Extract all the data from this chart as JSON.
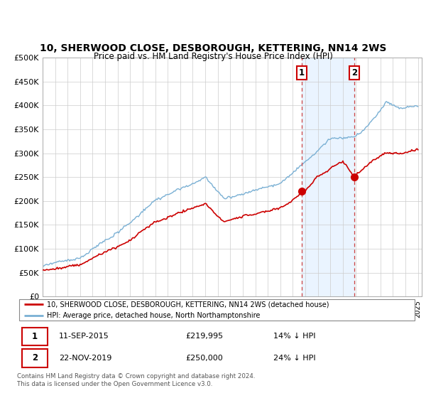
{
  "title": "10, SHERWOOD CLOSE, DESBOROUGH, KETTERING, NN14 2WS",
  "subtitle": "Price paid vs. HM Land Registry's House Price Index (HPI)",
  "ylabel_ticks": [
    "£0",
    "£50K",
    "£100K",
    "£150K",
    "£200K",
    "£250K",
    "£300K",
    "£350K",
    "£400K",
    "£450K",
    "£500K"
  ],
  "ytick_values": [
    0,
    50000,
    100000,
    150000,
    200000,
    250000,
    300000,
    350000,
    400000,
    450000,
    500000
  ],
  "ylim": [
    0,
    500000
  ],
  "transaction1_x": 2015.71,
  "transaction1_price": 219995,
  "transaction1_date": "11-SEP-2015",
  "transaction1_pct": "14% ↓ HPI",
  "transaction2_x": 2019.9,
  "transaction2_price": 250000,
  "transaction2_date": "22-NOV-2019",
  "transaction2_pct": "24% ↓ HPI",
  "legend_property": "10, SHERWOOD CLOSE, DESBOROUGH, KETTERING, NN14 2WS (detached house)",
  "legend_hpi": "HPI: Average price, detached house, North Northamptonshire",
  "footer": "Contains HM Land Registry data © Crown copyright and database right 2024.\nThis data is licensed under the Open Government Licence v3.0.",
  "property_color": "#cc0000",
  "hpi_color": "#7ab0d4",
  "shade_color": "#ddeeff",
  "vline_color": "#cc4444"
}
